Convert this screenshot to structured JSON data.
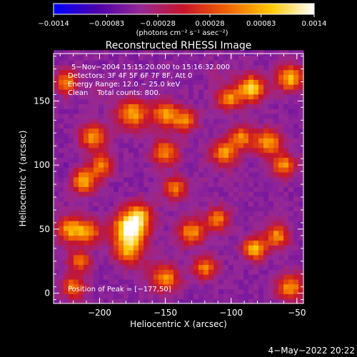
{
  "chart_data": {
    "type": "heatmap",
    "title": "Reconstructed RHESSI Image",
    "xlabel": "Heliocentric X (arcsec)",
    "ylabel": "Heliocentric Y (arcsec)",
    "xlim": [
      -235,
      -45
    ],
    "ylim": [
      -8,
      187
    ],
    "x_ticks": [
      -200,
      -150,
      -100,
      -50
    ],
    "y_ticks": [
      0,
      50,
      100,
      150
    ],
    "x_tick_labels": [
      "−200",
      "−150",
      "−100",
      "−50"
    ],
    "y_tick_labels": [
      "0",
      "50",
      "100",
      "150"
    ],
    "colorbar": {
      "range": [
        -0.0014,
        0.0014
      ],
      "ticks": [
        -0.0014,
        -0.00083,
        -0.00028,
        0.00028,
        0.00083,
        0.0014
      ],
      "tick_labels": [
        "−0.0014",
        "−0.00083",
        "−0.00028",
        "0.00028",
        "0.00083",
        "0.0014"
      ],
      "units": "(photons cm⁻² s⁻¹ asec⁻²)"
    },
    "annotations": {
      "time_range": "5−Nov−2004 15:15:20.000 to 15:16:32.000",
      "detectors": "Detectors: 3F 4F 5F 6F 7F 8F, Att 0",
      "energy": "Energy Range: 12.0 − 25.0 keV",
      "method": "Clean    Total counts: 800.",
      "peak": "Position of Peak = [−177,50]"
    },
    "peak": {
      "x": -177,
      "y": 50
    },
    "blobs": [
      {
        "x": -177,
        "y": 50,
        "v": 0.0014,
        "s": 9
      },
      {
        "x": -178,
        "y": 33,
        "v": 0.0006,
        "s": 7
      },
      {
        "x": -170,
        "y": 62,
        "v": 0.0005,
        "s": 7
      },
      {
        "x": -222,
        "y": 50,
        "v": 0.0008,
        "s": 7
      },
      {
        "x": -208,
        "y": 48,
        "v": 0.0006,
        "s": 6
      },
      {
        "x": -212,
        "y": 88,
        "v": 0.0008,
        "s": 7
      },
      {
        "x": -205,
        "y": 122,
        "v": 0.0007,
        "s": 7
      },
      {
        "x": -198,
        "y": 100,
        "v": 0.0006,
        "s": 6
      },
      {
        "x": -175,
        "y": 140,
        "v": 0.0008,
        "s": 8
      },
      {
        "x": -150,
        "y": 140,
        "v": 0.0007,
        "s": 7
      },
      {
        "x": -135,
        "y": 135,
        "v": 0.0006,
        "s": 6
      },
      {
        "x": -150,
        "y": 110,
        "v": 0.0006,
        "s": 7
      },
      {
        "x": -143,
        "y": 82,
        "v": 0.0006,
        "s": 6
      },
      {
        "x": -105,
        "y": 110,
        "v": 0.0007,
        "s": 7
      },
      {
        "x": -92,
        "y": 122,
        "v": 0.0006,
        "s": 6
      },
      {
        "x": -72,
        "y": 118,
        "v": 0.0008,
        "s": 7
      },
      {
        "x": -60,
        "y": 100,
        "v": 0.0007,
        "s": 6
      },
      {
        "x": -85,
        "y": 160,
        "v": 0.0011,
        "s": 7
      },
      {
        "x": -102,
        "y": 152,
        "v": 0.0007,
        "s": 6
      },
      {
        "x": -55,
        "y": 168,
        "v": 0.0009,
        "s": 7
      },
      {
        "x": -130,
        "y": 48,
        "v": 0.0007,
        "s": 7
      },
      {
        "x": -110,
        "y": 58,
        "v": 0.0006,
        "s": 6
      },
      {
        "x": -82,
        "y": 35,
        "v": 0.001,
        "s": 6
      },
      {
        "x": -65,
        "y": 45,
        "v": 0.0007,
        "s": 6
      },
      {
        "x": -150,
        "y": 12,
        "v": 0.0007,
        "s": 7
      },
      {
        "x": -220,
        "y": 5,
        "v": 0.0006,
        "s": 6
      },
      {
        "x": -55,
        "y": 5,
        "v": 0.0007,
        "s": 7
      },
      {
        "x": -120,
        "y": 20,
        "v": 0.0006,
        "s": 6
      },
      {
        "x": -225,
        "y": 165,
        "v": 0.0006,
        "s": 6
      },
      {
        "x": -215,
        "y": 25,
        "v": 0.0005,
        "s": 6
      },
      {
        "x": -225,
        "y": 95,
        "v": -0.0007,
        "s": 7
      },
      {
        "x": -190,
        "y": 75,
        "v": -0.0006,
        "s": 7
      },
      {
        "x": -95,
        "y": 78,
        "v": -0.0005,
        "s": 7
      },
      {
        "x": -75,
        "y": 60,
        "v": -0.0005,
        "s": 6
      },
      {
        "x": -120,
        "y": 95,
        "v": -0.0005,
        "s": 7
      },
      {
        "x": -55,
        "y": 150,
        "v": -0.0006,
        "s": 6
      },
      {
        "x": -165,
        "y": 22,
        "v": -0.0004,
        "s": 6
      },
      {
        "x": -110,
        "y": 170,
        "v": -0.0004,
        "s": 6
      },
      {
        "x": -200,
        "y": 160,
        "v": -0.0004,
        "s": 6
      }
    ]
  },
  "footer": {
    "date": "4−May−2022 20:22"
  },
  "colors": {
    "colormap": [
      [
        0,
        0,
        255
      ],
      [
        76,
        0,
        170
      ],
      [
        150,
        40,
        150
      ],
      [
        200,
        20,
        40
      ],
      [
        240,
        100,
        0
      ],
      [
        255,
        200,
        0
      ],
      [
        255,
        255,
        255
      ]
    ],
    "text": "#ffffff",
    "background": "#000000"
  }
}
